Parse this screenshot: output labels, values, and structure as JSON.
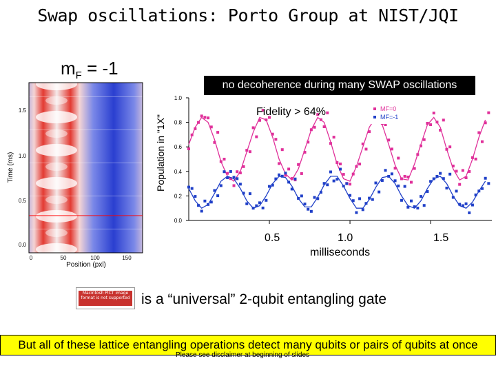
{
  "title": "Swap oscillations: Porto Group at NIST/JQI",
  "heatmap": {
    "label_main": "m",
    "label_sub": "F",
    "label_rest": " = -1",
    "ylabel": "Time (ms)",
    "xlabel": "Position (pxl)",
    "yticks": [
      "0.0",
      "0.5",
      "1.0",
      "1.5"
    ],
    "xticks": [
      "0",
      "50",
      "100",
      "150"
    ]
  },
  "banner": "no decoherence during many SWAP oscillations",
  "fidelity": "Fidelity > 64%",
  "chart_data": {
    "type": "scatter",
    "ylabel": "Population in \"1X\"",
    "xlabel": "milliseconds",
    "xlim": [
      0.0,
      1.88
    ],
    "ylim": [
      0.0,
      1.0
    ],
    "yticks": [
      "0.0",
      "0.2",
      "0.4",
      "0.6",
      "0.8",
      "1.0"
    ],
    "xticks": [
      "0.5",
      "1.0",
      "1.5"
    ],
    "xtick_values": [
      0.5,
      1.0,
      1.5
    ],
    "legend": [
      "MF=0",
      "MF=-1"
    ],
    "series": [
      {
        "name": "MF=0",
        "color": "#e0309a",
        "x": [
          0.0,
          0.04,
          0.08,
          0.12,
          0.16,
          0.2,
          0.24,
          0.28,
          0.32,
          0.36,
          0.4,
          0.44,
          0.48,
          0.52,
          0.56,
          0.6,
          0.64,
          0.68,
          0.72,
          0.76,
          0.8,
          0.84,
          0.88,
          0.92,
          0.96,
          1.0,
          1.04,
          1.08,
          1.12,
          1.16,
          1.2,
          1.24,
          1.28,
          1.32,
          1.36,
          1.4,
          1.44,
          1.48,
          1.52,
          1.56,
          1.6,
          1.64,
          1.68,
          1.72,
          1.76,
          1.8,
          1.84
        ],
        "y": [
          0.62,
          0.76,
          0.84,
          0.8,
          0.66,
          0.48,
          0.36,
          0.32,
          0.4,
          0.56,
          0.72,
          0.84,
          0.82,
          0.68,
          0.5,
          0.38,
          0.33,
          0.42,
          0.58,
          0.74,
          0.84,
          0.8,
          0.64,
          0.46,
          0.34,
          0.32,
          0.44,
          0.6,
          0.76,
          0.84,
          0.78,
          0.62,
          0.45,
          0.34,
          0.33,
          0.46,
          0.62,
          0.78,
          0.84,
          0.76,
          0.58,
          0.42,
          0.33,
          0.36,
          0.5,
          0.68,
          0.82
        ]
      },
      {
        "name": "MF=-1",
        "color": "#2040c8",
        "x": [
          0.0,
          0.04,
          0.08,
          0.12,
          0.16,
          0.2,
          0.24,
          0.28,
          0.32,
          0.36,
          0.4,
          0.44,
          0.48,
          0.52,
          0.56,
          0.6,
          0.64,
          0.68,
          0.72,
          0.76,
          0.8,
          0.84,
          0.88,
          0.92,
          0.96,
          1.0,
          1.04,
          1.08,
          1.12,
          1.16,
          1.2,
          1.24,
          1.28,
          1.32,
          1.36,
          1.4,
          1.44,
          1.48,
          1.52,
          1.56,
          1.6,
          1.64,
          1.68,
          1.72,
          1.76,
          1.8,
          1.84
        ],
        "y": [
          0.26,
          0.16,
          0.1,
          0.13,
          0.22,
          0.32,
          0.36,
          0.34,
          0.26,
          0.16,
          0.1,
          0.12,
          0.2,
          0.3,
          0.36,
          0.35,
          0.28,
          0.18,
          0.11,
          0.11,
          0.19,
          0.29,
          0.36,
          0.36,
          0.28,
          0.18,
          0.1,
          0.1,
          0.17,
          0.27,
          0.35,
          0.36,
          0.3,
          0.2,
          0.12,
          0.1,
          0.16,
          0.26,
          0.34,
          0.36,
          0.3,
          0.2,
          0.12,
          0.1,
          0.15,
          0.24,
          0.32
        ]
      }
    ]
  },
  "pict_placeholder": "Macintosh PICT image format is not supported",
  "universal": "is a “universal” 2-qubit entangling gate",
  "bottom_note": "But all of these lattice entangling operations detect many qubits or pairs of qubits at once",
  "disclaimer": "Please see disclaimer at beginning of slides"
}
